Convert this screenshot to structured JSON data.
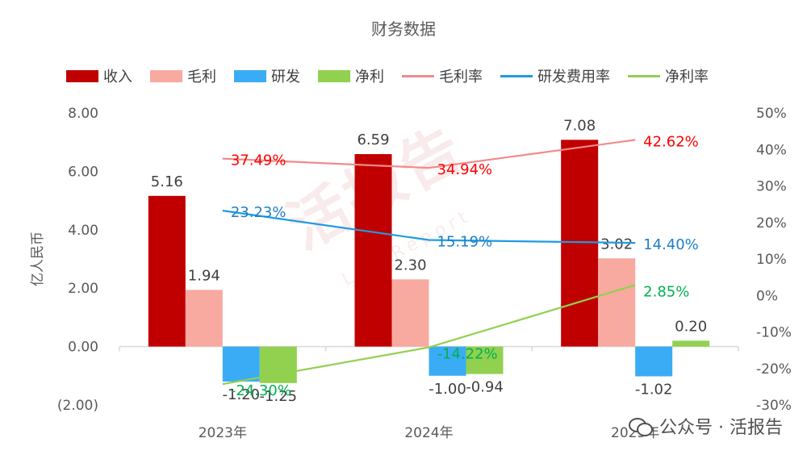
{
  "title": "财务数据",
  "legend": [
    {
      "label": "收入",
      "kind": "bar",
      "color": "#C00000"
    },
    {
      "label": "毛利",
      "kind": "bar",
      "color": "#F8A9A0"
    },
    {
      "label": "研发",
      "kind": "bar",
      "color": "#3AACF5"
    },
    {
      "label": "净利",
      "kind": "bar",
      "color": "#92D050"
    },
    {
      "label": "毛利率",
      "kind": "line",
      "color": "#F28A8A"
    },
    {
      "label": "研发费用率",
      "kind": "line",
      "color": "#1E9BE0"
    },
    {
      "label": "净利率",
      "kind": "line",
      "color": "#92D050"
    }
  ],
  "watermark": {
    "main": "活报告",
    "sub": "LiveReport"
  },
  "footer": {
    "text": "公众号 · 活报告",
    "icon": "wechat-icon"
  },
  "chart_data": {
    "type": "bar",
    "categories": [
      "2023年",
      "2024年",
      "2025年"
    ],
    "ylabel": "亿人民币",
    "ylim": [
      -2,
      8
    ],
    "y_ticks": [
      "8.00",
      "6.00",
      "4.00",
      "2.00",
      "0.00",
      "(2.00)"
    ],
    "y_tick_values": [
      8,
      6,
      4,
      2,
      0,
      -2
    ],
    "y2lim": [
      -30,
      50
    ],
    "y2_ticks": [
      "50%",
      "40%",
      "30%",
      "20%",
      "10%",
      "0%",
      "-10%",
      "-20%",
      "-30%"
    ],
    "y2_tick_values": [
      50,
      40,
      30,
      20,
      10,
      0,
      -10,
      -20,
      -30
    ],
    "series": [
      {
        "name": "收入",
        "axis": "left",
        "values": [
          5.16,
          6.59,
          7.08
        ],
        "labels": [
          "5.16",
          "6.59",
          "7.08"
        ],
        "color": "#C00000"
      },
      {
        "name": "毛利",
        "axis": "left",
        "values": [
          1.94,
          2.3,
          3.02
        ],
        "labels": [
          "1.94",
          "2.30",
          "3.02"
        ],
        "color": "#F8A9A0"
      },
      {
        "name": "研发",
        "axis": "left",
        "values": [
          -1.2,
          -1.0,
          -1.02
        ],
        "labels": [
          "-1.20",
          "-1.00",
          "-1.02"
        ],
        "color": "#3AACF5"
      },
      {
        "name": "净利",
        "axis": "left",
        "values": [
          -1.25,
          -0.94,
          0.2
        ],
        "labels": [
          "-1.25",
          "-0.94",
          "0.20"
        ],
        "color": "#92D050"
      }
    ],
    "line_series": [
      {
        "name": "毛利率",
        "axis": "right",
        "values": [
          37.49,
          34.94,
          42.62
        ],
        "labels": [
          "37.49%",
          "34.94%",
          "42.62%"
        ],
        "color": "#F28A8A",
        "label_color": "#FF0000"
      },
      {
        "name": "研发费用率",
        "axis": "right",
        "values": [
          23.23,
          15.19,
          14.4
        ],
        "labels": [
          "23.23%",
          "15.19%",
          "14.40%"
        ],
        "color": "#1E9BE0",
        "label_color": "#1E7FC8"
      },
      {
        "name": "净利率",
        "axis": "right",
        "values": [
          -24.3,
          -14.22,
          2.85
        ],
        "labels": [
          "-24.30%",
          "-14.22%",
          "2.85%"
        ],
        "color": "#92D050",
        "label_color": "#00B050"
      }
    ],
    "negative_tick_color": "#FF0000"
  }
}
